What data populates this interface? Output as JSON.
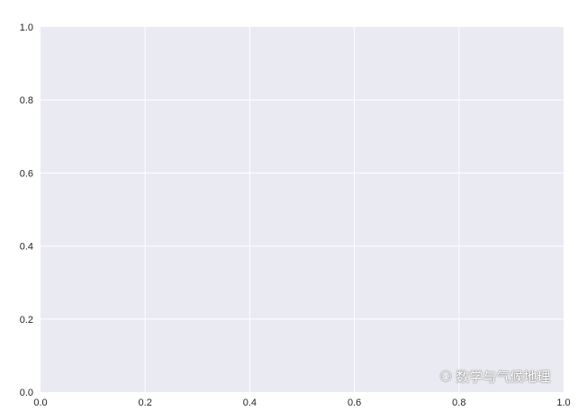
{
  "chart_data": {
    "type": "line",
    "title": "",
    "xlabel": "",
    "ylabel": "",
    "xlim": [
      0.0,
      1.0
    ],
    "ylim": [
      0.0,
      1.0
    ],
    "xticks": [
      "0.0",
      "0.2",
      "0.4",
      "0.6",
      "0.8",
      "1.0"
    ],
    "yticks": [
      "0.0",
      "0.2",
      "0.4",
      "0.6",
      "0.8",
      "1.0"
    ],
    "grid": true,
    "series": [],
    "colors": {
      "background": "#eaeaf2",
      "grid": "#ffffff",
      "text": "#262626"
    }
  },
  "watermark": {
    "text": "数学与气候地理",
    "icon": "wechat-icon"
  }
}
